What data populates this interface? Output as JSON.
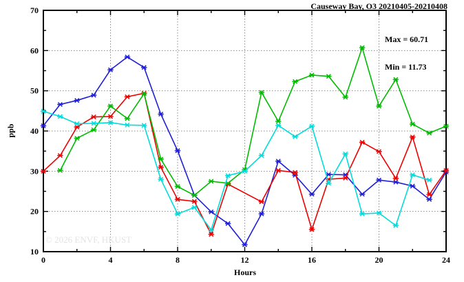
{
  "header": {
    "title": "Causeway Bay, O3 20210405-20210408"
  },
  "legend": {
    "max_label": "Max = 60.71",
    "min_label": "Min = 11.73"
  },
  "watermark": "© 2026 ENVF, HKUST",
  "chart_data": {
    "type": "line",
    "title": "Causeway Bay, O3 20210405-20210408",
    "xlabel": "Hours",
    "ylabel": "ppb",
    "xlim": [
      0,
      24
    ],
    "ylim": [
      10,
      70
    ],
    "x_major_ticks": [
      0,
      4,
      8,
      12,
      16,
      20,
      24
    ],
    "x_minor_ticks": [
      2,
      6,
      10,
      14,
      18,
      22
    ],
    "y_major_ticks": [
      10,
      20,
      30,
      40,
      50,
      60,
      70
    ],
    "y_minor_ticks": [
      15,
      25,
      35,
      45,
      55,
      65
    ],
    "grid": true,
    "legend_position": "top-right",
    "max_value": 60.71,
    "min_value": 11.73,
    "x": [
      0,
      1,
      2,
      3,
      4,
      5,
      6,
      7,
      8,
      9,
      10,
      11,
      12,
      13,
      14,
      15,
      16,
      17,
      18,
      19,
      20,
      21,
      22,
      23,
      24
    ],
    "series": [
      {
        "name": "blue",
        "color": "#1e1ed8",
        "values": [
          41.3,
          46.6,
          47.6,
          48.9,
          55.2,
          58.4,
          55.8,
          44.2,
          35.1,
          24.0,
          19.9,
          17.0,
          11.73,
          19.4,
          32.5,
          29.0,
          24.3,
          29.2,
          29.1,
          24.3,
          27.8,
          27.3,
          26.3,
          23.0,
          29.8
        ]
      },
      {
        "name": "red",
        "color": "#ee0000",
        "values": [
          30.0,
          33.9,
          41.0,
          43.5,
          43.6,
          48.5,
          49.4,
          31.0,
          23.0,
          22.5,
          14.3,
          26.8,
          null,
          22.4,
          30.2,
          29.7,
          15.5,
          28.0,
          28.3,
          37.2,
          34.9,
          28.2,
          38.5,
          24.2,
          30.2
        ]
      },
      {
        "name": "green",
        "color": "#00bb00",
        "values": [
          null,
          30.2,
          38.2,
          40.3,
          46.2,
          43.1,
          49.3,
          33.0,
          26.2,
          24.0,
          27.5,
          27.0,
          30.4,
          49.6,
          42.4,
          52.3,
          53.9,
          53.6,
          48.4,
          60.71,
          46.2,
          52.8,
          41.7,
          39.5,
          41.2
        ]
      },
      {
        "name": "cyan",
        "color": "#00dcdc",
        "values": [
          44.9,
          43.6,
          41.8,
          41.9,
          42.1,
          41.5,
          41.4,
          28.0,
          19.4,
          21.0,
          15.4,
          28.9,
          30.0,
          33.9,
          41.4,
          38.6,
          41.2,
          27.0,
          34.3,
          19.4,
          19.6,
          16.5,
          29.1,
          27.8,
          null
        ]
      }
    ]
  }
}
